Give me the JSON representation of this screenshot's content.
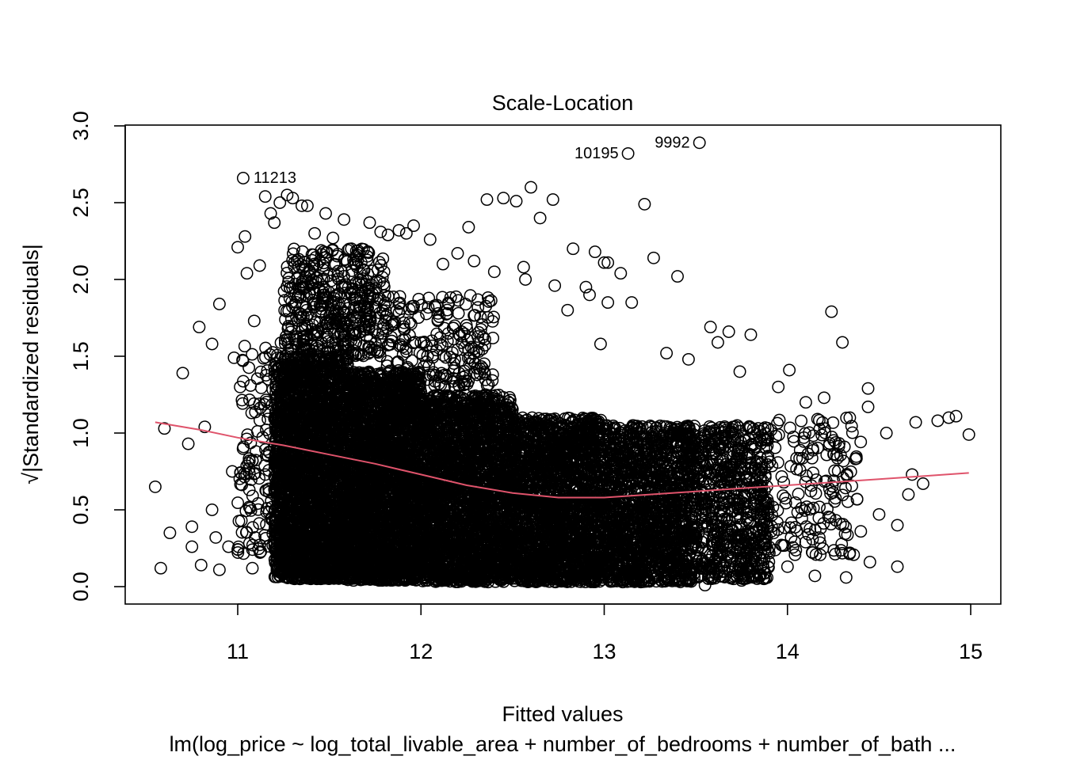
{
  "chart_data": {
    "type": "scatter",
    "title": "Scale-Location",
    "xlabel": "Fitted values",
    "ylabel": "√|Standardized residuals|",
    "subtitle": "lm(log_price ~ log_total_livable_area + number_of_bedrooms + number_of_bath ...",
    "xlim": [
      10.5,
      15.1
    ],
    "ylim": [
      -0.1,
      3.05
    ],
    "x_ticks": [
      "11",
      "12",
      "13",
      "14",
      "15"
    ],
    "y_ticks": [
      "0.0",
      "0.5",
      "1.0",
      "1.5",
      "2.0",
      "2.5",
      "3.0"
    ],
    "grid": false,
    "marker": "open-circle",
    "colors": {
      "points": "#000000",
      "smooth": "#DF536B"
    },
    "labeled_points": [
      {
        "label": "11213",
        "x": 11.03,
        "y": 2.66
      },
      {
        "label": "10195",
        "x": 13.13,
        "y": 2.82
      },
      {
        "label": "9992",
        "x": 13.52,
        "y": 2.89
      }
    ],
    "sample_points": [
      {
        "x": 10.55,
        "y": 0.65
      },
      {
        "x": 10.58,
        "y": 0.12
      },
      {
        "x": 10.6,
        "y": 1.03
      },
      {
        "x": 10.63,
        "y": 0.35
      },
      {
        "x": 10.7,
        "y": 1.39
      },
      {
        "x": 10.73,
        "y": 0.93
      },
      {
        "x": 10.75,
        "y": 0.39
      },
      {
        "x": 10.75,
        "y": 0.26
      },
      {
        "x": 10.79,
        "y": 1.69
      },
      {
        "x": 10.8,
        "y": 0.14
      },
      {
        "x": 10.82,
        "y": 1.04
      },
      {
        "x": 10.86,
        "y": 0.5
      },
      {
        "x": 10.86,
        "y": 1.58
      },
      {
        "x": 10.88,
        "y": 0.32
      },
      {
        "x": 10.9,
        "y": 0.11
      },
      {
        "x": 10.9,
        "y": 1.84
      },
      {
        "x": 10.95,
        "y": 0.26
      },
      {
        "x": 10.97,
        "y": 0.75
      },
      {
        "x": 10.98,
        "y": 1.49
      },
      {
        "x": 11.0,
        "y": 2.21
      },
      {
        "x": 11.02,
        "y": 0.43
      },
      {
        "x": 11.04,
        "y": 2.28
      },
      {
        "x": 11.05,
        "y": 2.04
      },
      {
        "x": 11.08,
        "y": 0.12
      },
      {
        "x": 11.09,
        "y": 1.73
      },
      {
        "x": 11.1,
        "y": 0.88
      },
      {
        "x": 11.12,
        "y": 2.09
      },
      {
        "x": 11.15,
        "y": 2.54
      },
      {
        "x": 11.18,
        "y": 2.43
      },
      {
        "x": 11.2,
        "y": 2.37
      },
      {
        "x": 11.23,
        "y": 2.5
      },
      {
        "x": 11.27,
        "y": 2.55
      },
      {
        "x": 11.3,
        "y": 2.53
      },
      {
        "x": 11.35,
        "y": 2.48
      },
      {
        "x": 11.38,
        "y": 2.48
      },
      {
        "x": 11.42,
        "y": 2.3
      },
      {
        "x": 11.48,
        "y": 2.43
      },
      {
        "x": 11.52,
        "y": 2.27
      },
      {
        "x": 11.58,
        "y": 2.39
      },
      {
        "x": 11.62,
        "y": 2.2
      },
      {
        "x": 11.65,
        "y": 2.16
      },
      {
        "x": 11.72,
        "y": 2.37
      },
      {
        "x": 11.78,
        "y": 2.31
      },
      {
        "x": 11.82,
        "y": 2.29
      },
      {
        "x": 11.88,
        "y": 2.32
      },
      {
        "x": 11.92,
        "y": 2.3
      },
      {
        "x": 11.96,
        "y": 2.35
      },
      {
        "x": 12.05,
        "y": 2.26
      },
      {
        "x": 12.12,
        "y": 2.1
      },
      {
        "x": 12.2,
        "y": 2.17
      },
      {
        "x": 12.26,
        "y": 2.34
      },
      {
        "x": 12.29,
        "y": 2.12
      },
      {
        "x": 12.36,
        "y": 2.52
      },
      {
        "x": 12.4,
        "y": 2.05
      },
      {
        "x": 12.45,
        "y": 2.53
      },
      {
        "x": 12.52,
        "y": 2.51
      },
      {
        "x": 12.56,
        "y": 2.08
      },
      {
        "x": 12.57,
        "y": 2.0
      },
      {
        "x": 12.6,
        "y": 2.6
      },
      {
        "x": 12.65,
        "y": 2.4
      },
      {
        "x": 12.72,
        "y": 2.52
      },
      {
        "x": 12.73,
        "y": 1.96
      },
      {
        "x": 12.8,
        "y": 1.8
      },
      {
        "x": 12.83,
        "y": 2.2
      },
      {
        "x": 12.9,
        "y": 1.95
      },
      {
        "x": 12.92,
        "y": 1.9
      },
      {
        "x": 12.95,
        "y": 2.18
      },
      {
        "x": 12.98,
        "y": 1.58
      },
      {
        "x": 13.0,
        "y": 2.11
      },
      {
        "x": 13.02,
        "y": 2.11
      },
      {
        "x": 13.02,
        "y": 1.85
      },
      {
        "x": 13.09,
        "y": 2.04
      },
      {
        "x": 13.15,
        "y": 1.85
      },
      {
        "x": 13.22,
        "y": 2.49
      },
      {
        "x": 13.27,
        "y": 2.14
      },
      {
        "x": 13.34,
        "y": 1.52
      },
      {
        "x": 13.4,
        "y": 2.02
      },
      {
        "x": 13.46,
        "y": 1.48
      },
      {
        "x": 13.58,
        "y": 1.69
      },
      {
        "x": 13.62,
        "y": 1.59
      },
      {
        "x": 13.68,
        "y": 1.66
      },
      {
        "x": 13.74,
        "y": 1.4
      },
      {
        "x": 13.8,
        "y": 1.64
      },
      {
        "x": 13.95,
        "y": 1.3
      },
      {
        "x": 14.01,
        "y": 1.41
      },
      {
        "x": 14.1,
        "y": 1.2
      },
      {
        "x": 14.2,
        "y": 1.23
      },
      {
        "x": 14.24,
        "y": 1.79
      },
      {
        "x": 14.3,
        "y": 1.59
      },
      {
        "x": 14.34,
        "y": 1.1
      },
      {
        "x": 14.44,
        "y": 1.29
      },
      {
        "x": 14.44,
        "y": 1.17
      },
      {
        "x": 14.54,
        "y": 1.0
      },
      {
        "x": 14.7,
        "y": 1.07
      },
      {
        "x": 14.82,
        "y": 1.08
      },
      {
        "x": 14.88,
        "y": 1.1
      },
      {
        "x": 14.92,
        "y": 1.11
      },
      {
        "x": 14.99,
        "y": 0.99
      },
      {
        "x": 14.74,
        "y": 0.67
      },
      {
        "x": 14.68,
        "y": 0.73
      },
      {
        "x": 14.66,
        "y": 0.6
      },
      {
        "x": 14.6,
        "y": 0.13
      },
      {
        "x": 14.6,
        "y": 0.4
      },
      {
        "x": 14.5,
        "y": 0.47
      },
      {
        "x": 14.45,
        "y": 0.16
      },
      {
        "x": 14.4,
        "y": 0.36
      },
      {
        "x": 14.34,
        "y": 0.22
      },
      {
        "x": 14.32,
        "y": 0.06
      },
      {
        "x": 14.15,
        "y": 0.07
      },
      {
        "x": 14.0,
        "y": 0.13
      },
      {
        "x": 13.75,
        "y": 0.04
      },
      {
        "x": 13.55,
        "y": 0.01
      },
      {
        "x": 13.2,
        "y": 0.03
      }
    ],
    "dense_cloud": [
      {
        "x": [
          11.2,
          11.6
        ],
        "y": [
          0.05,
          1.5
        ],
        "n": 2600
      },
      {
        "x": [
          11.6,
          12.0
        ],
        "y": [
          0.04,
          1.4
        ],
        "n": 2600
      },
      {
        "x": [
          12.0,
          12.5
        ],
        "y": [
          0.03,
          1.25
        ],
        "n": 2400
      },
      {
        "x": [
          12.5,
          13.0
        ],
        "y": [
          0.03,
          1.1
        ],
        "n": 2000
      },
      {
        "x": [
          13.0,
          13.5
        ],
        "y": [
          0.03,
          1.05
        ],
        "n": 1500
      },
      {
        "x": [
          13.5,
          13.9
        ],
        "y": [
          0.05,
          1.05
        ],
        "n": 700
      },
      {
        "x": [
          11.25,
          11.8
        ],
        "y": [
          1.5,
          2.2
        ],
        "n": 450
      },
      {
        "x": [
          11.8,
          12.4
        ],
        "y": [
          1.3,
          1.9
        ],
        "n": 220
      },
      {
        "x": [
          13.9,
          14.4
        ],
        "y": [
          0.2,
          1.1
        ],
        "n": 160
      },
      {
        "x": [
          11.0,
          11.25
        ],
        "y": [
          0.2,
          1.6
        ],
        "n": 140
      }
    ],
    "smooth_line": [
      {
        "x": 10.55,
        "y": 1.07
      },
      {
        "x": 10.8,
        "y": 1.02
      },
      {
        "x": 11.0,
        "y": 0.97
      },
      {
        "x": 11.25,
        "y": 0.92
      },
      {
        "x": 11.5,
        "y": 0.86
      },
      {
        "x": 11.75,
        "y": 0.8
      },
      {
        "x": 12.0,
        "y": 0.73
      },
      {
        "x": 12.25,
        "y": 0.66
      },
      {
        "x": 12.5,
        "y": 0.61
      },
      {
        "x": 12.75,
        "y": 0.58
      },
      {
        "x": 13.0,
        "y": 0.58
      },
      {
        "x": 13.25,
        "y": 0.6
      },
      {
        "x": 13.5,
        "y": 0.62
      },
      {
        "x": 13.75,
        "y": 0.64
      },
      {
        "x": 14.0,
        "y": 0.66
      },
      {
        "x": 14.25,
        "y": 0.68
      },
      {
        "x": 14.5,
        "y": 0.7
      },
      {
        "x": 14.75,
        "y": 0.72
      },
      {
        "x": 14.99,
        "y": 0.74
      }
    ]
  }
}
